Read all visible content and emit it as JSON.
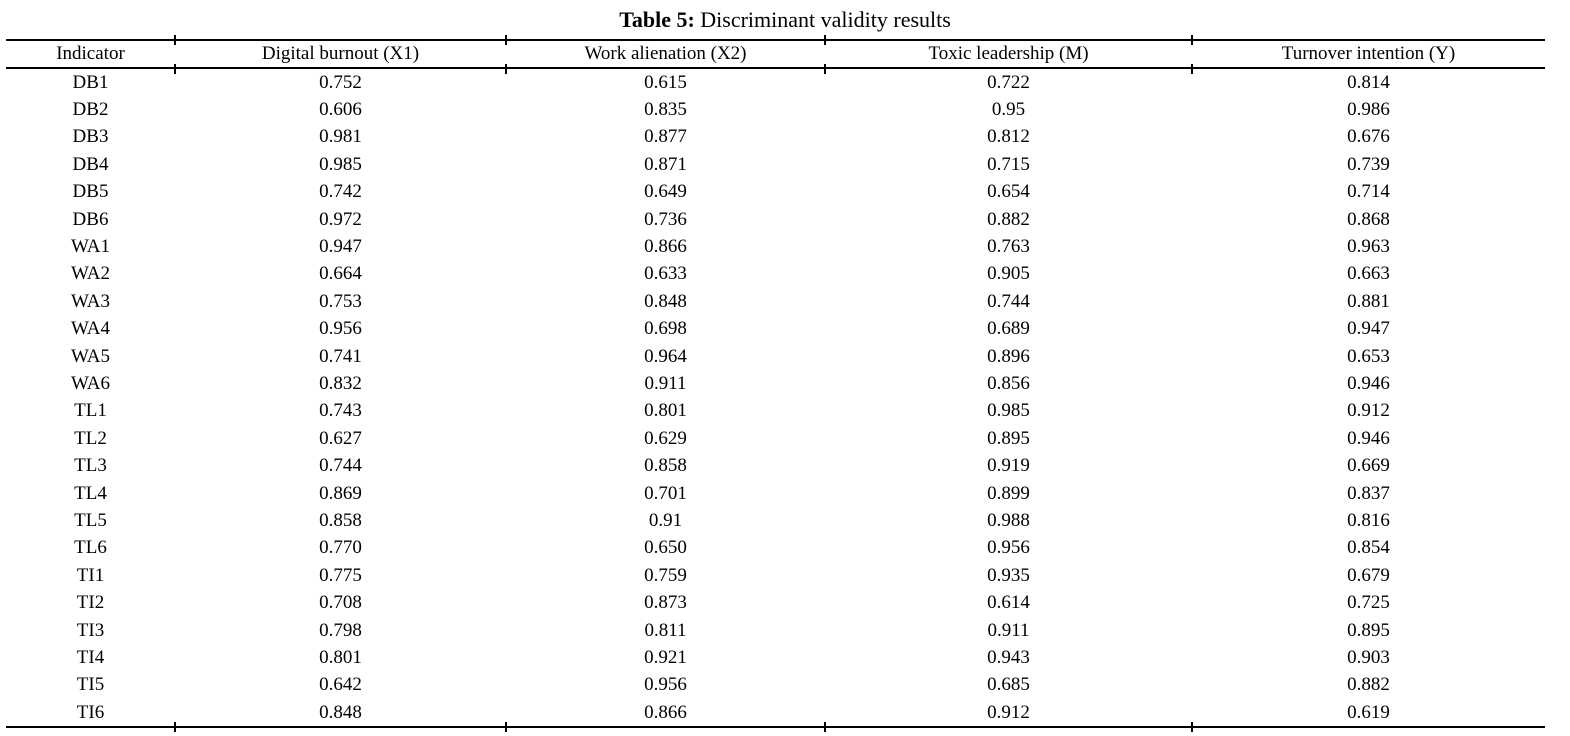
{
  "table": {
    "title_bold": "Table 5:",
    "title_rest": "Discriminant validity results",
    "columns": [
      "Indicator",
      "Digital burnout (X1)",
      "Work alienation (X2)",
      "Toxic leadership (M)",
      "Turnover intention (Y)"
    ],
    "rows": [
      [
        "DB1",
        "0.752",
        "0.615",
        "0.722",
        "0.814"
      ],
      [
        "DB2",
        "0.606",
        "0.835",
        "0.95",
        "0.986"
      ],
      [
        "DB3",
        "0.981",
        "0.877",
        "0.812",
        "0.676"
      ],
      [
        "DB4",
        "0.985",
        "0.871",
        "0.715",
        "0.739"
      ],
      [
        "DB5",
        "0.742",
        "0.649",
        "0.654",
        "0.714"
      ],
      [
        "DB6",
        "0.972",
        "0.736",
        "0.882",
        "0.868"
      ],
      [
        "WA1",
        "0.947",
        "0.866",
        "0.763",
        "0.963"
      ],
      [
        "WA2",
        "0.664",
        "0.633",
        "0.905",
        "0.663"
      ],
      [
        "WA3",
        "0.753",
        "0.848",
        "0.744",
        "0.881"
      ],
      [
        "WA4",
        "0.956",
        "0.698",
        "0.689",
        "0.947"
      ],
      [
        "WA5",
        "0.741",
        "0.964",
        "0.896",
        "0.653"
      ],
      [
        "WA6",
        "0.832",
        "0.911",
        "0.856",
        "0.946"
      ],
      [
        "TL1",
        "0.743",
        "0.801",
        "0.985",
        "0.912"
      ],
      [
        "TL2",
        "0.627",
        "0.629",
        "0.895",
        "0.946"
      ],
      [
        "TL3",
        "0.744",
        "0.858",
        "0.919",
        "0.669"
      ],
      [
        "TL4",
        "0.869",
        "0.701",
        "0.899",
        "0.837"
      ],
      [
        "TL5",
        "0.858",
        "0.91",
        "0.988",
        "0.816"
      ],
      [
        "TL6",
        "0.770",
        "0.650",
        "0.956",
        "0.854"
      ],
      [
        "TI1",
        "0.775",
        "0.759",
        "0.935",
        "0.679"
      ],
      [
        "TI2",
        "0.708",
        "0.873",
        "0.614",
        "0.725"
      ],
      [
        "TI3",
        "0.798",
        "0.811",
        "0.911",
        "0.895"
      ],
      [
        "TI4",
        "0.801",
        "0.921",
        "0.943",
        "0.903"
      ],
      [
        "TI5",
        "0.642",
        "0.956",
        "0.685",
        "0.882"
      ],
      [
        "TI6",
        "0.848",
        "0.866",
        "0.912",
        "0.619"
      ]
    ]
  }
}
